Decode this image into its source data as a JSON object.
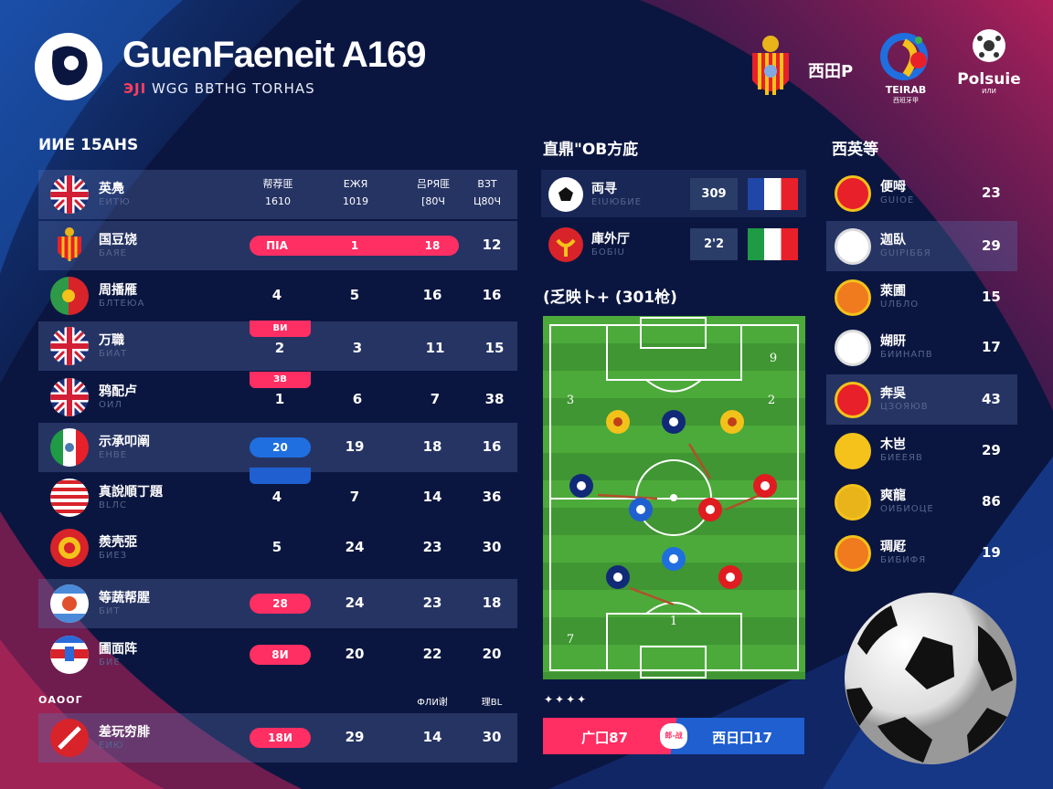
{
  "header": {
    "title": "GuenFaeneit A169",
    "subtitle_accent": "ЭЈІ",
    "subtitle": "WGG ВВТНG ТОRНАS",
    "partners": [
      {
        "label": "西田P"
      },
      {
        "label": "TEIRAB",
        "sub": "西班牙甲"
      },
      {
        "label": "Polsuie",
        "sub": "ИЛИ"
      }
    ]
  },
  "colors": {
    "pink": "#ff2e63",
    "blue": "#1f6fe0",
    "navy": "#0b1640",
    "pitch": "#4caa3a"
  },
  "standings": {
    "title": "ИИЕ 15АНS",
    "header_row": {
      "name": "英鳧",
      "sub": "ЕИТЮ",
      "crest": "uk-flag",
      "cols": [
        "帮荐匪\n1610",
        "ЕЖЯ\n1019",
        "吕РЯ匪\n[80Ч",
        "ВЗТ\nЦ80Ч"
      ]
    },
    "rows": [
      {
        "name": "国豆饶",
        "sub": "БАЯЕ",
        "crest": "spain-crest",
        "wide_pill": [
          "ПIА",
          "1",
          "18"
        ],
        "cols": [
          "",
          "",
          "",
          "12"
        ],
        "hl": true
      },
      {
        "name": "周播雁",
        "sub": "БЛТЕЮА",
        "crest": "portugal-flag",
        "cols": [
          "4",
          "5",
          "16",
          "16"
        ]
      },
      {
        "name": "万職",
        "sub": "БИАТ",
        "crest": "uk-flag",
        "tag": "ВИ",
        "cols": [
          "2",
          "3",
          "11",
          "15"
        ],
        "hl": true
      },
      {
        "name": "鸦配卢",
        "sub": "ОИЛ",
        "crest": "uk-flag",
        "tag": "ЗВ",
        "cols": [
          "1",
          "6",
          "7",
          "38"
        ]
      },
      {
        "name": "示承叩阐",
        "sub": "ЕНВЕ",
        "crest": "mexico-flag",
        "pill": "20",
        "pill_color": "blue",
        "cols": [
          "",
          "19",
          "18",
          "16"
        ],
        "hl": true
      },
      {
        "name": "真說順丁題",
        "sub": "ВLЛС",
        "crest": "striped-crest",
        "cols": [
          "4",
          "7",
          "14",
          "36"
        ]
      },
      {
        "name": "羨壳弫",
        "sub": "БИЕЗ",
        "crest": "red-yellow-crest",
        "cols": [
          "5",
          "24",
          "23",
          "30"
        ]
      },
      {
        "name": "等蔬帮腥",
        "sub": "БИТ",
        "crest": "argentina-crest",
        "pill": "28",
        "pill_color": "pink",
        "cols": [
          "",
          "24",
          "23",
          "18"
        ],
        "hl": true
      },
      {
        "name": "圃面阵",
        "sub": "БИЕ",
        "crest": "red-white-crest",
        "pill": "8И",
        "pill_color": "pink",
        "cols": [
          "",
          "20",
          "22",
          "20"
        ]
      }
    ],
    "footer_label": "ОАООГ",
    "footer_cols": [
      "ФЛИ谢",
      "理BL"
    ],
    "footer_row": {
      "name": "差玩穷腓",
      "sub": "ЕИЮ",
      "crest": "red-shield-crest",
      "pill": "18И",
      "pill_color": "pink",
      "cols": [
        "",
        "29",
        "14",
        "30"
      ],
      "hl": true
    }
  },
  "matches": {
    "title": "直鼎\"OB方庛",
    "items": [
      {
        "name": "両寻",
        "sub": "ЕIUЮБИЕ",
        "crest": "ball-crest",
        "score": "309",
        "flag": [
          "#2046a8",
          "#ffffff",
          "#e8202a"
        ]
      },
      {
        "name": "庫外厅",
        "sub": "БОБIU",
        "crest": "red-crest",
        "score": "2'2",
        "flag": [
          "#1f9a45",
          "#ffffff",
          "#e8202a"
        ]
      }
    ]
  },
  "formation": {
    "title": "(乏映ト+ (301枪)",
    "labels": [
      "9",
      "3",
      "2",
      "1",
      "7"
    ],
    "players": [
      "yellow",
      "navy",
      "yellow",
      "navy",
      "red",
      "blue-yellow",
      "red",
      "blue",
      "navy",
      "red"
    ]
  },
  "result_bar": {
    "stars": "✦✦✦✦",
    "left": "广囗87",
    "center": "郎-战",
    "right": "西日囗17"
  },
  "ranking": {
    "title": "西英等",
    "items": [
      {
        "name": "便呣",
        "sub": "GUIOE",
        "value": "23",
        "crest": "#e8202a"
      },
      {
        "name": "迦臥",
        "sub": "GUIPIББЯ",
        "value": "29",
        "crest": "#ffffff",
        "hl": true
      },
      {
        "name": "萊圃",
        "sub": "UЛБЛО",
        "value": "15",
        "crest": "#f07a1e"
      },
      {
        "name": "媩䀘",
        "sub": "БИИНАПВ",
        "value": "17",
        "crest": "#ffffff"
      },
      {
        "name": "奔吳",
        "sub": "ЦЗОЯЮВ",
        "value": "43",
        "crest": "#e8202a",
        "hl": true
      },
      {
        "name": "木岜",
        "sub": "БИЕЕЯВ",
        "value": "29",
        "crest": "#f4c21a"
      },
      {
        "name": "爽龍",
        "sub": "ОИБИОЦЕ",
        "value": "86",
        "crest": "#e8b41a"
      },
      {
        "name": "琱屘",
        "sub": "БИБИФЯ",
        "value": "19",
        "crest": "#f07a1e"
      }
    ]
  }
}
